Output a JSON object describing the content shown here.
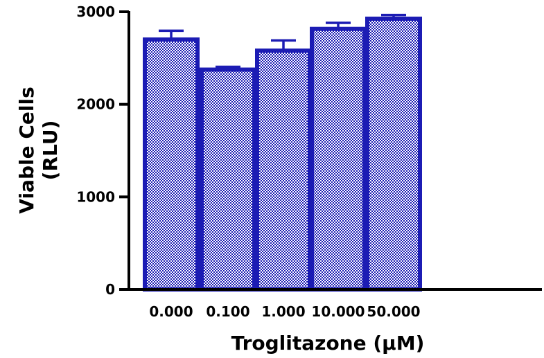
{
  "chart_data": {
    "type": "bar",
    "categories": [
      "0.000",
      "0.100",
      "1.000",
      "10.000",
      "50.000"
    ],
    "values": [
      2700,
      2375,
      2580,
      2815,
      2925
    ],
    "error_upper": [
      2795,
      2405,
      2690,
      2880,
      2965
    ],
    "xlabel": "Troglitazone (µM)",
    "ylabel_lines": [
      "Viable Cells",
      "(RLU)"
    ],
    "ylim": [
      0,
      3000
    ],
    "yticks": [
      0,
      1000,
      2000,
      3000
    ],
    "ytick_labels": [
      "0",
      "1000",
      "2000",
      "3000"
    ],
    "grid": false,
    "legend": "none",
    "colors": {
      "bar_edge": "#1c1cb4",
      "bar_pattern": "#1c1cb4",
      "axis": "#000000"
    }
  }
}
